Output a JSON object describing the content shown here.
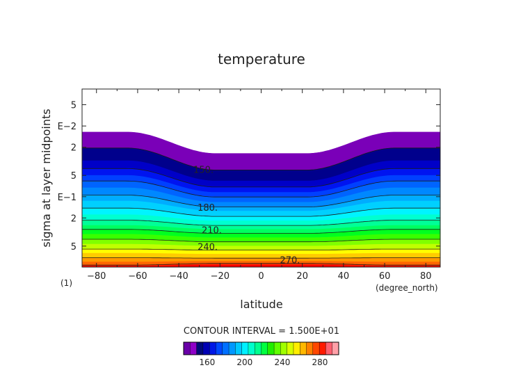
{
  "chart_data": {
    "type": "contour",
    "title": "temperature",
    "xlabel": "latitude",
    "ylabel": "sigma at layer midpoints",
    "x_unit_label": "(degree_north)",
    "y_corner_label": "(1)",
    "xlim": [
      -87,
      87
    ],
    "x_ticks": [
      -80,
      -60,
      -40,
      -20,
      0,
      20,
      40,
      60,
      80
    ],
    "y_scale": "log",
    "y_ticks": [
      {
        "label": "5",
        "sigma": 0.005
      },
      {
        "label": "E−2",
        "sigma": 0.01
      },
      {
        "label": "2",
        "sigma": 0.02
      },
      {
        "label": "5",
        "sigma": 0.05
      },
      {
        "label": "E−1",
        "sigma": 0.1
      },
      {
        "label": "2",
        "sigma": 0.2
      },
      {
        "label": "5",
        "sigma": 0.5
      }
    ],
    "ylim": [
      0.003,
      0.99
    ],
    "contour_interval_text": "CONTOUR INTERVAL = 1.500E+01",
    "contour_labels": [
      {
        "text": "150.",
        "lat": -28,
        "sigma": 0.042
      },
      {
        "text": "180.",
        "lat": -26,
        "sigma": 0.145
      },
      {
        "text": "210.",
        "lat": -24,
        "sigma": 0.3
      },
      {
        "text": "240.",
        "lat": -26,
        "sigma": 0.52
      },
      {
        "text": "270.",
        "lat": 14,
        "sigma": 0.8
      }
    ],
    "boundaries_sigma_at_pole_and_equator": [
      [
        0.0122,
        0.0245
      ],
      [
        0.0205,
        0.042
      ],
      [
        0.031,
        0.06
      ],
      [
        0.04,
        0.073
      ],
      [
        0.05,
        0.087
      ],
      [
        0.06,
        0.101
      ],
      [
        0.075,
        0.12
      ],
      [
        0.095,
        0.14
      ],
      [
        0.115,
        0.16
      ],
      [
        0.145,
        0.19
      ],
      [
        0.18,
        0.22
      ],
      [
        0.215,
        0.255
      ],
      [
        0.255,
        0.29
      ],
      [
        0.29,
        0.33
      ],
      [
        0.34,
        0.38
      ],
      [
        0.4,
        0.435
      ],
      [
        0.47,
        0.5
      ],
      [
        0.55,
        0.57
      ],
      [
        0.63,
        0.65
      ],
      [
        0.73,
        0.74
      ],
      [
        0.84,
        0.82
      ],
      [
        0.93,
        0.88
      ],
      [
        0.96,
        0.925
      ]
    ],
    "colorbar": {
      "min": 135,
      "max": 300,
      "step": 7.5,
      "tick_values": [
        160,
        200,
        240,
        280
      ],
      "colors": [
        "#6a00a8",
        "#8f00c7",
        "#000a78",
        "#0000b4",
        "#0018e6",
        "#0048ff",
        "#0070ff",
        "#0098ff",
        "#00c8ff",
        "#00f0ff",
        "#00ffcc",
        "#00ff90",
        "#00ff40",
        "#20ee00",
        "#60ff00",
        "#a0ff00",
        "#d8ff00",
        "#ffee00",
        "#ffb800",
        "#ff8000",
        "#ff4800",
        "#ff1a00",
        "#ff6070",
        "#ffa0a8"
      ]
    },
    "plot_colors": [
      "#7a00b8",
      "#00008c",
      "#0000c8",
      "#0014f0",
      "#0040ff",
      "#0064ff",
      "#0088ff",
      "#00acff",
      "#00d0ff",
      "#00f4ff",
      "#00ffd0",
      "#00ff98",
      "#00ff60",
      "#00ff20",
      "#38ff00",
      "#80ff00",
      "#c0ff00",
      "#ffff00",
      "#ffcc00",
      "#ff9900",
      "#ff6600",
      "#ff3300",
      "#ff0000",
      "#e80000"
    ],
    "grid": false
  }
}
